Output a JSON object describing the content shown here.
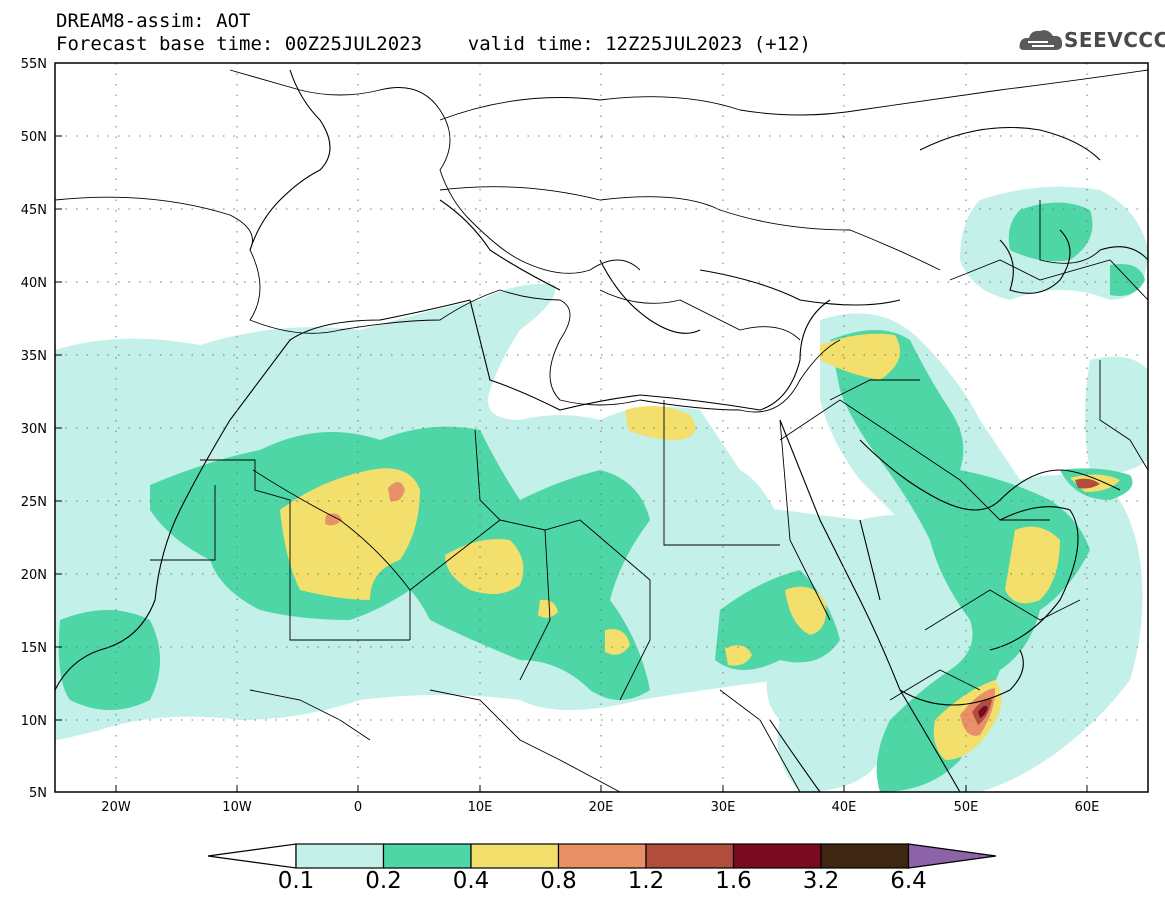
{
  "header": {
    "title_line1": "DREAM8-assim: AOT",
    "title_line2": "Forecast base time: 00Z25JUL2023    valid time: 12Z25JUL2023 (+12)",
    "logo_text": "SEEVCCC"
  },
  "map": {
    "projection": "lat-lon",
    "lon_range": [
      -25,
      65
    ],
    "lat_range": [
      5,
      55
    ],
    "lat_ticks": [
      "55N",
      "50N",
      "45N",
      "40N",
      "35N",
      "30N",
      "25N",
      "20N",
      "15N",
      "10N",
      "5N"
    ],
    "lon_ticks": [
      "20W",
      "10W",
      "0",
      "10E",
      "20E",
      "30E",
      "40E",
      "50E",
      "60E"
    ],
    "grid": "dotted"
  },
  "colorbar": {
    "labels": [
      "0.1",
      "0.2",
      "0.4",
      "0.8",
      "1.2",
      "1.6",
      "3.2",
      "6.4"
    ],
    "colors": [
      "#ffffff",
      "#c3f0e8",
      "#4ed6a6",
      "#f2df6c",
      "#ea9068",
      "#b04d3c",
      "#7a0a22",
      "#3d2712",
      "#8d63a8"
    ]
  },
  "colors": {
    "level_01": "#c3f0e8",
    "level_02": "#4ed6a6",
    "level_04": "#f2df6c",
    "level_08": "#ea9068",
    "level_12": "#b04d3c",
    "level_16": "#7a0a22"
  }
}
